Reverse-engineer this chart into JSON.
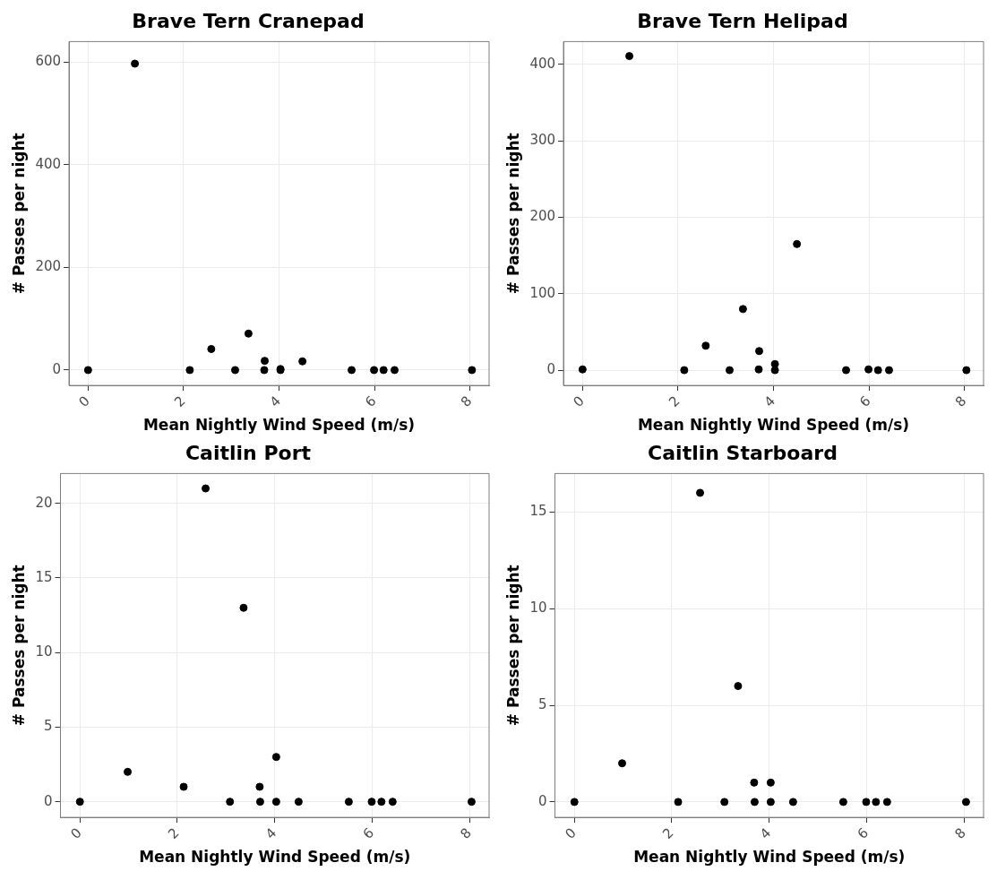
{
  "chart_data": [
    {
      "type": "scatter",
      "title": "Brave Tern Cranepad",
      "xlabel": "Mean Nightly Wind Speed (m/s)",
      "ylabel": "# Passes per night",
      "x": [
        0,
        0.98,
        2.13,
        2.58,
        3.08,
        3.36,
        3.69,
        3.7,
        4.03,
        4.03,
        4.49,
        5.52,
        5.99,
        6.19,
        6.42,
        8.04
      ],
      "values": [
        0,
        597,
        0,
        41,
        0,
        71,
        0,
        18,
        0,
        2,
        17,
        0,
        0,
        0,
        0,
        0
      ],
      "color": "#000000",
      "marker": "circle",
      "xlim": [
        -0.4,
        8.4
      ],
      "xticks": [
        0,
        2,
        4,
        6,
        8
      ],
      "ylim": [
        -30,
        640
      ],
      "yticks": [
        0,
        200,
        400,
        600
      ],
      "grid": true,
      "legend": false
    },
    {
      "type": "scatter",
      "title": "Brave Tern Helipad",
      "xlabel": "Mean Nightly Wind Speed (m/s)",
      "ylabel": "# Passes per night",
      "x": [
        0,
        0.98,
        2.13,
        2.58,
        3.08,
        3.36,
        3.69,
        3.7,
        4.03,
        4.03,
        4.49,
        5.52,
        5.99,
        6.19,
        6.42,
        8.04
      ],
      "values": [
        1,
        411,
        0,
        32,
        0,
        80,
        1,
        25,
        8,
        0,
        165,
        0,
        1,
        0,
        0,
        0
      ],
      "color": "#000000",
      "marker": "circle",
      "xlim": [
        -0.4,
        8.4
      ],
      "xticks": [
        0,
        2,
        4,
        6,
        8
      ],
      "ylim": [
        -20,
        430
      ],
      "yticks": [
        0,
        100,
        200,
        300,
        400
      ],
      "grid": true,
      "legend": false
    },
    {
      "type": "scatter",
      "title": "Caitlin Port",
      "xlabel": "Mean Nightly Wind Speed (m/s)",
      "ylabel": "# Passes per night",
      "x": [
        0,
        0.98,
        2.13,
        2.58,
        3.08,
        3.36,
        3.69,
        3.7,
        4.03,
        4.03,
        4.49,
        5.52,
        5.99,
        6.19,
        6.42,
        8.04
      ],
      "values": [
        0,
        2,
        1,
        21,
        0,
        13,
        1,
        0,
        3,
        0,
        0,
        0,
        0,
        0,
        0,
        0
      ],
      "color": "#000000",
      "marker": "circle",
      "xlim": [
        -0.4,
        8.4
      ],
      "xticks": [
        0,
        2,
        4,
        6,
        8
      ],
      "ylim": [
        -1.05,
        22
      ],
      "yticks": [
        0,
        5,
        10,
        15,
        20
      ],
      "grid": true,
      "legend": false
    },
    {
      "type": "scatter",
      "title": "Caitlin Starboard",
      "xlabel": "Mean Nightly Wind Speed (m/s)",
      "ylabel": "# Passes per night",
      "x": [
        0,
        0.98,
        2.13,
        2.58,
        3.08,
        3.36,
        3.69,
        3.7,
        4.03,
        4.03,
        4.49,
        5.52,
        5.99,
        6.19,
        6.42,
        8.04
      ],
      "values": [
        0,
        2,
        0,
        16,
        0,
        6,
        1,
        0,
        1,
        0,
        0,
        0,
        0,
        0,
        0,
        0
      ],
      "color": "#000000",
      "marker": "circle",
      "xlim": [
        -0.4,
        8.4
      ],
      "xticks": [
        0,
        2,
        4,
        6,
        8
      ],
      "ylim": [
        -0.8,
        17
      ],
      "yticks": [
        0,
        5,
        10,
        15
      ],
      "grid": true,
      "legend": false
    }
  ]
}
